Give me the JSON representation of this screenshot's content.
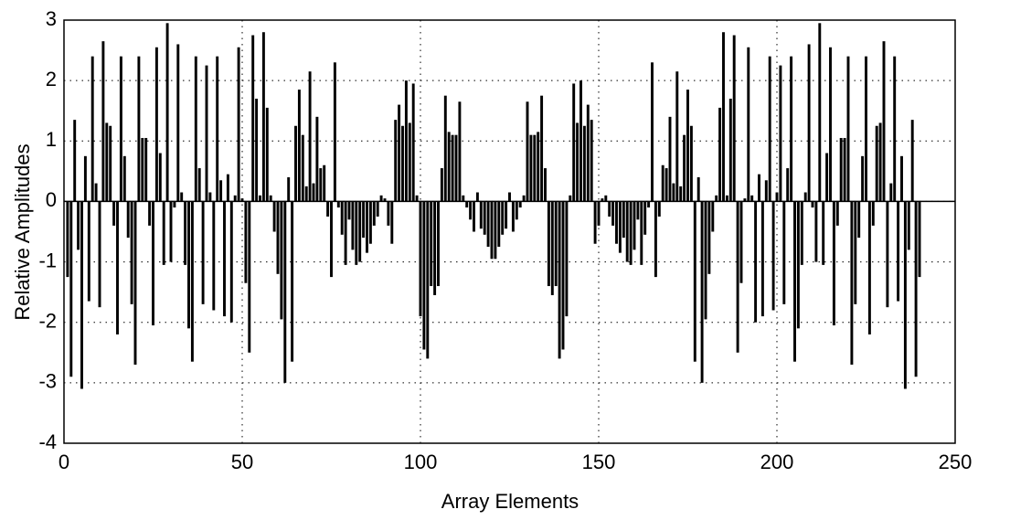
{
  "chart_data": {
    "type": "bar",
    "xlabel": "Array Elements",
    "ylabel": "Relative Amplitudes",
    "color": "#000000",
    "grid": true,
    "xlim": [
      0,
      250
    ],
    "xticks": [
      0,
      50,
      100,
      150,
      200,
      250
    ],
    "ylim": [
      -4,
      3
    ],
    "yticks": [
      -4,
      -3,
      -2,
      -1,
      0,
      1,
      2,
      3
    ],
    "x": [
      1,
      2,
      3,
      4,
      5,
      6,
      7,
      8,
      9,
      10,
      11,
      12,
      13,
      14,
      15,
      16,
      17,
      18,
      19,
      20,
      21,
      22,
      23,
      24,
      25,
      26,
      27,
      28,
      29,
      30,
      31,
      32,
      33,
      34,
      35,
      36,
      37,
      38,
      39,
      40,
      41,
      42,
      43,
      44,
      45,
      46,
      47,
      48,
      49,
      50,
      51,
      52,
      53,
      54,
      55,
      56,
      57,
      58,
      59,
      60,
      61,
      62,
      63,
      64,
      65,
      66,
      67,
      68,
      69,
      70,
      71,
      72,
      73,
      74,
      75,
      76,
      77,
      78,
      79,
      80,
      81,
      82,
      83,
      84,
      85,
      86,
      87,
      88,
      89,
      90,
      91,
      92,
      93,
      94,
      95,
      96,
      97,
      98,
      99,
      100,
      101,
      102,
      103,
      104,
      105,
      106,
      107,
      108,
      109,
      110,
      111,
      112,
      113,
      114,
      115,
      116,
      117,
      118,
      119,
      120,
      121,
      122,
      123,
      124,
      125,
      126,
      127,
      128,
      129,
      130,
      131,
      132,
      133,
      134,
      135,
      136,
      137,
      138,
      139,
      140,
      141,
      142,
      143,
      144,
      145,
      146,
      147,
      148,
      149,
      150,
      151,
      152,
      153,
      154,
      155,
      156,
      157,
      158,
      159,
      160,
      161,
      162,
      163,
      164,
      165,
      166,
      167,
      168,
      169,
      170,
      171,
      172,
      173,
      174,
      175,
      176,
      177,
      178,
      179,
      180,
      181,
      182,
      183,
      184,
      185,
      186,
      187,
      188,
      189,
      190,
      191,
      192,
      193,
      194,
      195,
      196,
      197,
      198,
      199,
      200,
      201,
      202,
      203,
      204,
      205,
      206,
      207,
      208,
      209,
      210,
      211,
      212,
      213,
      214,
      215,
      216,
      217,
      218,
      219,
      220,
      221,
      222,
      223,
      224,
      225,
      226,
      227,
      228,
      229,
      230,
      231,
      232,
      233,
      234,
      235,
      236,
      237,
      238,
      239,
      240
    ],
    "values": [
      -1.25,
      -2.9,
      1.35,
      -0.8,
      -3.1,
      0.75,
      -1.65,
      2.4,
      0.3,
      -1.75,
      2.65,
      1.3,
      1.25,
      -0.4,
      -2.2,
      2.4,
      0.75,
      -0.6,
      -1.7,
      -2.7,
      2.4,
      1.05,
      1.05,
      -0.4,
      -2.05,
      2.55,
      0.8,
      -1.05,
      2.95,
      -1.0,
      -0.1,
      2.6,
      0.15,
      -1.05,
      -2.1,
      -2.65,
      2.4,
      0.55,
      -1.7,
      2.25,
      0.15,
      -1.8,
      2.4,
      0.35,
      -1.9,
      0.45,
      -2.0,
      0.1,
      2.55,
      0.05,
      -1.35,
      -2.5,
      2.75,
      1.7,
      0.1,
      2.8,
      1.55,
      0.1,
      -0.5,
      -1.2,
      -1.95,
      -3.0,
      0.4,
      -2.65,
      1.25,
      1.85,
      1.1,
      0.25,
      2.15,
      0.3,
      1.4,
      0.55,
      0.6,
      -0.25,
      -1.25,
      2.3,
      -0.1,
      -0.55,
      -1.05,
      -0.3,
      -0.8,
      -1.05,
      -1.0,
      -0.6,
      -0.85,
      -0.7,
      -0.4,
      -0.25,
      0.1,
      0.05,
      -0.4,
      -0.7,
      1.35,
      1.6,
      1.25,
      2.0,
      1.3,
      1.95,
      0.1,
      -1.9,
      -2.45,
      -2.6,
      -1.4,
      -1.55,
      -1.4,
      0.55,
      1.75,
      1.15,
      1.1,
      1.1,
      1.65,
      0.1,
      -0.1,
      -0.3,
      -0.5,
      0.15,
      -0.45,
      -0.55,
      -0.75,
      -0.95,
      -0.95,
      -0.75,
      -0.55,
      -0.45,
      0.15,
      -0.5,
      -0.3,
      -0.1,
      0.1,
      1.65,
      1.1,
      1.1,
      1.15,
      1.75,
      0.55,
      -1.4,
      -1.55,
      -1.4,
      -2.6,
      -2.45,
      -1.9,
      0.1,
      1.95,
      1.3,
      2.0,
      1.25,
      1.6,
      1.35,
      -0.7,
      -0.4,
      0.05,
      0.1,
      -0.25,
      -0.4,
      -0.7,
      -0.85,
      -0.6,
      -1.0,
      -1.05,
      -0.8,
      -0.3,
      -1.05,
      -0.55,
      -0.1,
      2.3,
      -1.25,
      -0.25,
      0.6,
      0.55,
      1.4,
      0.3,
      2.15,
      0.25,
      1.1,
      1.85,
      1.25,
      -2.65,
      0.4,
      -3.0,
      -1.95,
      -1.2,
      -0.5,
      0.1,
      1.55,
      2.8,
      0.1,
      1.7,
      2.75,
      -2.5,
      -1.35,
      0.05,
      2.55,
      0.1,
      -2.0,
      0.45,
      -1.9,
      0.35,
      2.4,
      -1.8,
      0.15,
      2.25,
      -1.7,
      0.55,
      2.4,
      -2.65,
      -2.1,
      -1.05,
      0.15,
      2.6,
      -0.1,
      -1.0,
      2.95,
      -1.05,
      0.8,
      2.55,
      -2.05,
      -0.4,
      1.05,
      1.05,
      2.4,
      -2.7,
      -1.7,
      -0.6,
      0.75,
      2.4,
      -2.2,
      -0.4,
      1.25,
      1.3,
      2.65,
      -1.75,
      0.3,
      2.4,
      -1.65,
      0.75,
      -3.1,
      -0.8,
      1.35,
      -2.9,
      -1.25
    ]
  }
}
